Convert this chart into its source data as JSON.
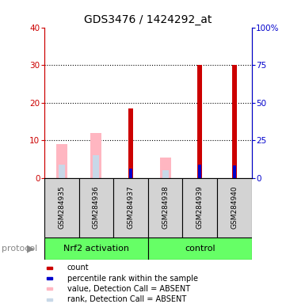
{
  "title": "GDS3476 / 1424292_at",
  "samples": [
    "GSM284935",
    "GSM284936",
    "GSM284937",
    "GSM284938",
    "GSM284939",
    "GSM284940"
  ],
  "count_values": [
    0,
    0,
    18.5,
    0,
    30,
    30
  ],
  "percentile_values": [
    0,
    0,
    6,
    0,
    9,
    8
  ],
  "absent_value_values": [
    9,
    12,
    0,
    5.5,
    0,
    0
  ],
  "absent_rank_values": [
    3.5,
    6,
    0,
    2,
    0,
    0
  ],
  "ylim_left": [
    0,
    40
  ],
  "ylim_right": [
    0,
    100
  ],
  "yticks_left": [
    0,
    10,
    20,
    30,
    40
  ],
  "yticks_right": [
    0,
    25,
    50,
    75,
    100
  ],
  "ytick_labels_left": [
    "0",
    "10",
    "20",
    "30",
    "40"
  ],
  "ytick_labels_right": [
    "0",
    "25",
    "50",
    "75",
    "100%"
  ],
  "left_axis_color": "#cc0000",
  "right_axis_color": "#0000cc",
  "sample_bg_color": "#d3d3d3",
  "count_color": "#cc0000",
  "percentile_color": "#0000cc",
  "absent_value_color": "#FFB6C1",
  "absent_rank_color": "#c8d8e8",
  "green_color": "#66ff66",
  "legend_items": [
    "count",
    "percentile rank within the sample",
    "value, Detection Call = ABSENT",
    "rank, Detection Call = ABSENT"
  ],
  "legend_colors": [
    "#cc0000",
    "#0000cc",
    "#FFB6C1",
    "#c8d8e8"
  ],
  "group1_label": "Nrf2 activation",
  "group2_label": "control",
  "protocol_label": "protocol",
  "nrf2_samples": 3,
  "control_samples": 3
}
